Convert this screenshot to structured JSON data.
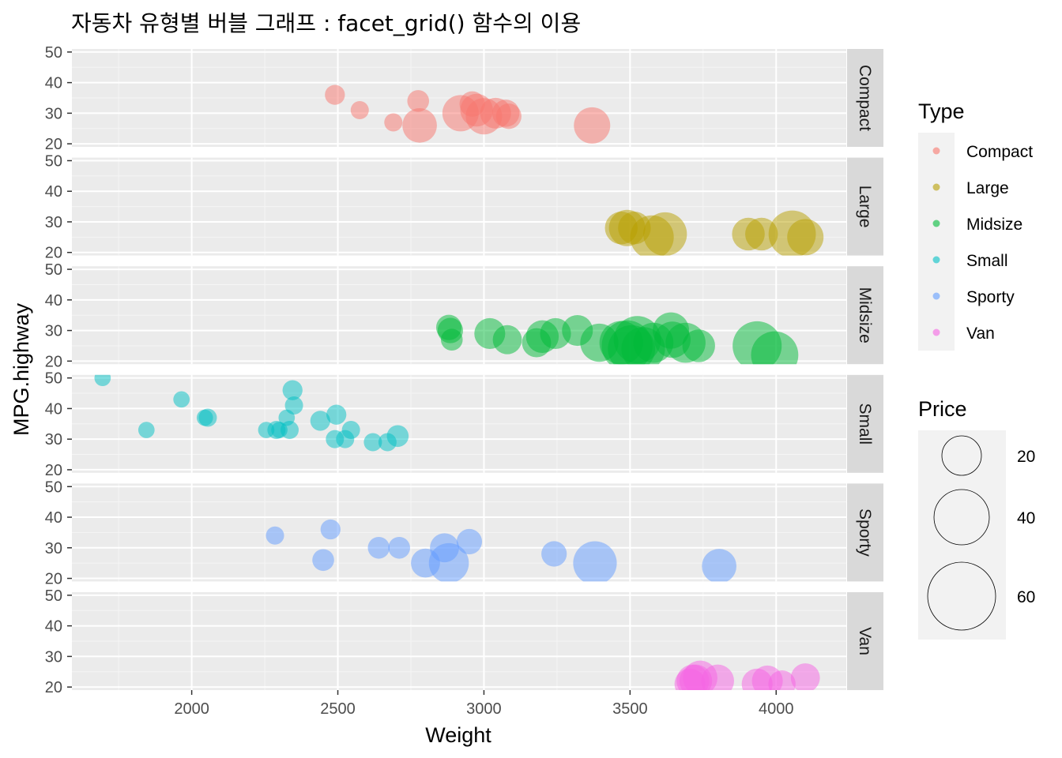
{
  "title": "자동차 유형별 버블 그래프 : facet_grid() 함수의 이용",
  "legends": {
    "type_title": "Type",
    "price_title": "Price",
    "price_sizes": [
      "20",
      "40",
      "60"
    ]
  },
  "colors": {
    "Compact": "#F8766D",
    "Large": "#B79F00",
    "Midsize": "#00BA38",
    "Small": "#00BFC4",
    "Sporty": "#619CFF",
    "Van": "#F564E3"
  },
  "chart_data": {
    "type": "scatter",
    "title": "자동차 유형별 버블 그래프 : facet_grid() 함수의 이용",
    "xlabel": "Weight",
    "ylabel": "MPG.highway",
    "xlim": [
      1590,
      4240
    ],
    "ylim": [
      19,
      51
    ],
    "x_ticks": [
      2000,
      2500,
      3000,
      3500,
      4000
    ],
    "y_ticks": [
      20,
      30,
      40,
      50
    ],
    "grid": true,
    "legend_position": "right",
    "facets": [
      {
        "name": "Compact",
        "points": [
          {
            "x": 2490,
            "y": 36,
            "size": 11
          },
          {
            "x": 2575,
            "y": 31,
            "size": 10
          },
          {
            "x": 2690,
            "y": 27,
            "size": 10
          },
          {
            "x": 2775,
            "y": 34,
            "size": 12
          },
          {
            "x": 2780,
            "y": 26,
            "size": 19
          },
          {
            "x": 2920,
            "y": 30,
            "size": 20
          },
          {
            "x": 2960,
            "y": 33,
            "size": 14
          },
          {
            "x": 2975,
            "y": 31,
            "size": 18
          },
          {
            "x": 3000,
            "y": 29,
            "size": 20
          },
          {
            "x": 3040,
            "y": 30,
            "size": 17
          },
          {
            "x": 3075,
            "y": 30,
            "size": 15
          },
          {
            "x": 3085,
            "y": 29,
            "size": 14
          },
          {
            "x": 3370,
            "y": 26,
            "size": 20
          }
        ]
      },
      {
        "name": "Large",
        "points": [
          {
            "x": 3470,
            "y": 28,
            "size": 18
          },
          {
            "x": 3490,
            "y": 28,
            "size": 20
          },
          {
            "x": 3515,
            "y": 28,
            "size": 18
          },
          {
            "x": 3575,
            "y": 25,
            "size": 24
          },
          {
            "x": 3620,
            "y": 26,
            "size": 24
          },
          {
            "x": 3905,
            "y": 26,
            "size": 18
          },
          {
            "x": 3950,
            "y": 26,
            "size": 18
          },
          {
            "x": 4055,
            "y": 26,
            "size": 26
          },
          {
            "x": 4100,
            "y": 25,
            "size": 20
          }
        ]
      },
      {
        "name": "Midsize",
        "points": [
          {
            "x": 2880,
            "y": 31,
            "size": 14
          },
          {
            "x": 2885,
            "y": 30,
            "size": 14
          },
          {
            "x": 2890,
            "y": 27,
            "size": 12
          },
          {
            "x": 3020,
            "y": 29,
            "size": 17
          },
          {
            "x": 3080,
            "y": 27,
            "size": 16
          },
          {
            "x": 3180,
            "y": 26,
            "size": 16
          },
          {
            "x": 3200,
            "y": 28,
            "size": 18
          },
          {
            "x": 3245,
            "y": 29,
            "size": 17
          },
          {
            "x": 3320,
            "y": 30,
            "size": 17
          },
          {
            "x": 3395,
            "y": 26,
            "size": 21
          },
          {
            "x": 3470,
            "y": 26,
            "size": 24
          },
          {
            "x": 3490,
            "y": 25,
            "size": 28
          },
          {
            "x": 3505,
            "y": 24,
            "size": 26
          },
          {
            "x": 3525,
            "y": 27,
            "size": 26
          },
          {
            "x": 3545,
            "y": 24,
            "size": 24
          },
          {
            "x": 3580,
            "y": 26,
            "size": 22
          },
          {
            "x": 3640,
            "y": 30,
            "size": 20
          },
          {
            "x": 3645,
            "y": 27,
            "size": 20
          },
          {
            "x": 3690,
            "y": 26,
            "size": 22
          },
          {
            "x": 3735,
            "y": 25,
            "size": 18
          },
          {
            "x": 3935,
            "y": 25,
            "size": 27
          },
          {
            "x": 3995,
            "y": 22,
            "size": 26
          }
        ]
      },
      {
        "name": "Small",
        "points": [
          {
            "x": 1695,
            "y": 50,
            "size": 9
          },
          {
            "x": 1845,
            "y": 33,
            "size": 9
          },
          {
            "x": 1965,
            "y": 43,
            "size": 9
          },
          {
            "x": 2045,
            "y": 37,
            "size": 9
          },
          {
            "x": 2055,
            "y": 37,
            "size": 10
          },
          {
            "x": 2255,
            "y": 33,
            "size": 9
          },
          {
            "x": 2290,
            "y": 33,
            "size": 10
          },
          {
            "x": 2300,
            "y": 33,
            "size": 9
          },
          {
            "x": 2325,
            "y": 37,
            "size": 9
          },
          {
            "x": 2335,
            "y": 33,
            "size": 10
          },
          {
            "x": 2345,
            "y": 46,
            "size": 11
          },
          {
            "x": 2350,
            "y": 41,
            "size": 10
          },
          {
            "x": 2440,
            "y": 36,
            "size": 11
          },
          {
            "x": 2490,
            "y": 30,
            "size": 10
          },
          {
            "x": 2495,
            "y": 38,
            "size": 11
          },
          {
            "x": 2525,
            "y": 30,
            "size": 10
          },
          {
            "x": 2545,
            "y": 33,
            "size": 10
          },
          {
            "x": 2620,
            "y": 29,
            "size": 10
          },
          {
            "x": 2670,
            "y": 29,
            "size": 10
          },
          {
            "x": 2705,
            "y": 31,
            "size": 12
          }
        ]
      },
      {
        "name": "Sporty",
        "points": [
          {
            "x": 2285,
            "y": 34,
            "size": 10
          },
          {
            "x": 2450,
            "y": 26,
            "size": 12
          },
          {
            "x": 2475,
            "y": 36,
            "size": 11
          },
          {
            "x": 2640,
            "y": 30,
            "size": 12
          },
          {
            "x": 2710,
            "y": 30,
            "size": 12
          },
          {
            "x": 2800,
            "y": 25,
            "size": 16
          },
          {
            "x": 2865,
            "y": 30,
            "size": 16
          },
          {
            "x": 2880,
            "y": 25,
            "size": 22
          },
          {
            "x": 2950,
            "y": 32,
            "size": 14
          },
          {
            "x": 3240,
            "y": 28,
            "size": 14
          },
          {
            "x": 3380,
            "y": 25,
            "size": 24
          },
          {
            "x": 3805,
            "y": 24,
            "size": 19
          }
        ]
      },
      {
        "name": "Van",
        "points": [
          {
            "x": 3705,
            "y": 21,
            "size": 17
          },
          {
            "x": 3715,
            "y": 22,
            "size": 18
          },
          {
            "x": 3725,
            "y": 22,
            "size": 18
          },
          {
            "x": 3740,
            "y": 23,
            "size": 19
          },
          {
            "x": 3800,
            "y": 22,
            "size": 18
          },
          {
            "x": 3935,
            "y": 21,
            "size": 17
          },
          {
            "x": 3970,
            "y": 22,
            "size": 17
          },
          {
            "x": 4020,
            "y": 21,
            "size": 15
          },
          {
            "x": 4100,
            "y": 23,
            "size": 16
          }
        ]
      }
    ]
  }
}
